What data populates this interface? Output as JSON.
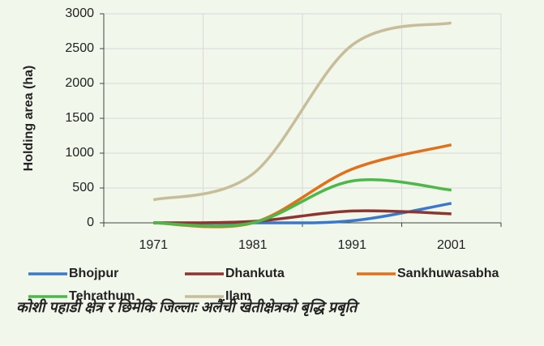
{
  "chart_data": {
    "type": "line",
    "ylabel": "Holding area (ha)",
    "categories": [
      "1971",
      "1981",
      "1991",
      "2001"
    ],
    "series": [
      {
        "name": "Bhojpur",
        "color": "#3a78cc",
        "values": [
          0,
          0,
          30,
          280
        ]
      },
      {
        "name": "Dhankuta",
        "color": "#8e3532",
        "values": [
          0,
          20,
          170,
          130
        ]
      },
      {
        "name": "Sankhuwasabha",
        "color": "#e0701c",
        "values": [
          0,
          0,
          770,
          1120
        ]
      },
      {
        "name": "Tehrathum",
        "color": "#4cb84a",
        "values": [
          0,
          0,
          600,
          470
        ]
      },
      {
        "name": "Ilam",
        "color": "#c8bd9b",
        "values": [
          330,
          700,
          2550,
          2870
        ]
      }
    ],
    "ylim": [
      0,
      3000
    ],
    "yticks": [
      0,
      500,
      1000,
      1500,
      2000,
      2500,
      3000
    ],
    "grid": true,
    "caption": "कोशी पहाडी क्षेत्र र छिमेकि जिल्लाः अलैंची खेतीक्षेत्रको बृद्धि प्रबृति"
  }
}
